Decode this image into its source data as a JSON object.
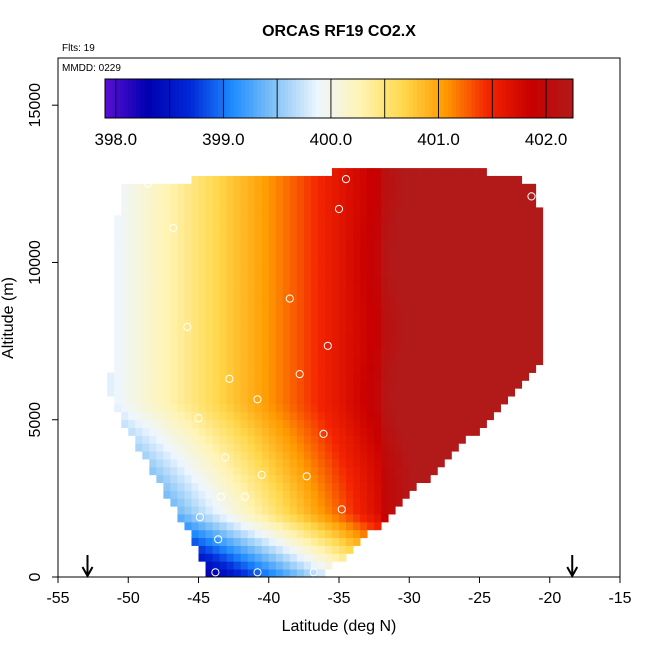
{
  "chart_data": {
    "type": "heatmap",
    "title": "ORCAS RF19 CO2.X",
    "flights_label": "Flts: 19",
    "date_label": "MMDD: 0229",
    "xlabel": "Latitude (deg N)",
    "ylabel": "Altitude (m)",
    "xlim": [
      -55,
      -15
    ],
    "ylim": [
      0,
      16500
    ],
    "xticks": [
      -55,
      -50,
      -45,
      -40,
      -35,
      -30,
      -25,
      -20,
      -15
    ],
    "xtick_labels": [
      "-55",
      "-50",
      "-45",
      "-40",
      "-35",
      "-30",
      "-25",
      "-20",
      "-15"
    ],
    "yticks": [
      0,
      5000,
      10000,
      15000
    ],
    "ytick_labels": [
      "0",
      "5000",
      "10000",
      "15000"
    ],
    "colorbar": {
      "range": [
        397.9,
        402.25
      ],
      "ticks": [
        398.0,
        399.0,
        400.0,
        401.0,
        402.0
      ],
      "tick_labels": [
        "398.0",
        "399.0",
        "400.0",
        "401.0",
        "402.0"
      ],
      "colors": [
        "#5a0fd4",
        "#0000b0",
        "#0028d8",
        "#1e8cff",
        "#86c4f6",
        "#eef6ff",
        "#fff4b4",
        "#ffd84c",
        "#ff9a00",
        "#f42400",
        "#c80000",
        "#b21a1a"
      ]
    },
    "envelope": [
      {
        "alt": 0,
        "lat_min": -44.2,
        "lat_max": -36.2
      },
      {
        "alt": 1000,
        "lat_min": -45.2,
        "lat_max": -33.8
      },
      {
        "alt": 2000,
        "lat_min": -46.5,
        "lat_max": -31.2
      },
      {
        "alt": 3000,
        "lat_min": -47.8,
        "lat_max": -29.0
      },
      {
        "alt": 4000,
        "lat_min": -49.2,
        "lat_max": -26.8
      },
      {
        "alt": 5000,
        "lat_min": -50.5,
        "lat_max": -24.3
      },
      {
        "alt": 5800,
        "lat_min": -51.3,
        "lat_max": -22.4
      },
      {
        "alt": 7000,
        "lat_min": -51.2,
        "lat_max": -20.3
      },
      {
        "alt": 9000,
        "lat_min": -51.0,
        "lat_max": -20.3
      },
      {
        "alt": 11000,
        "lat_min": -50.8,
        "lat_max": -20.5
      },
      {
        "alt": 12500,
        "lat_min": -50.6,
        "lat_max": -21.0
      },
      {
        "alt": 12900,
        "lat_min": -34.5,
        "lat_max": -25.0
      }
    ],
    "sample_points": [
      {
        "lat": -43.8,
        "alt": 150
      },
      {
        "lat": -40.8,
        "alt": 150
      },
      {
        "lat": -36.8,
        "alt": 150
      },
      {
        "lat": -43.6,
        "alt": 1200
      },
      {
        "lat": -44.9,
        "alt": 1900
      },
      {
        "lat": -43.4,
        "alt": 2550
      },
      {
        "lat": -41.7,
        "alt": 2550
      },
      {
        "lat": -34.8,
        "alt": 2150
      },
      {
        "lat": -37.3,
        "alt": 3200
      },
      {
        "lat": -40.5,
        "alt": 3250
      },
      {
        "lat": -43.1,
        "alt": 3800
      },
      {
        "lat": -45.0,
        "alt": 5050
      },
      {
        "lat": -36.1,
        "alt": 4550
      },
      {
        "lat": -40.8,
        "alt": 5650
      },
      {
        "lat": -42.8,
        "alt": 6300
      },
      {
        "lat": -37.8,
        "alt": 6450
      },
      {
        "lat": -35.8,
        "alt": 7350
      },
      {
        "lat": -45.8,
        "alt": 7950
      },
      {
        "lat": -38.5,
        "alt": 8850
      },
      {
        "lat": -46.8,
        "alt": 11100
      },
      {
        "lat": -35.0,
        "alt": 11700
      },
      {
        "lat": -34.5,
        "alt": 12650
      },
      {
        "lat": -21.3,
        "alt": 12100
      },
      {
        "lat": -20.1,
        "alt": 6950
      },
      {
        "lat": -48.6,
        "alt": 12500
      }
    ],
    "arrows_lat": [
      -52.9,
      -18.4
    ]
  }
}
